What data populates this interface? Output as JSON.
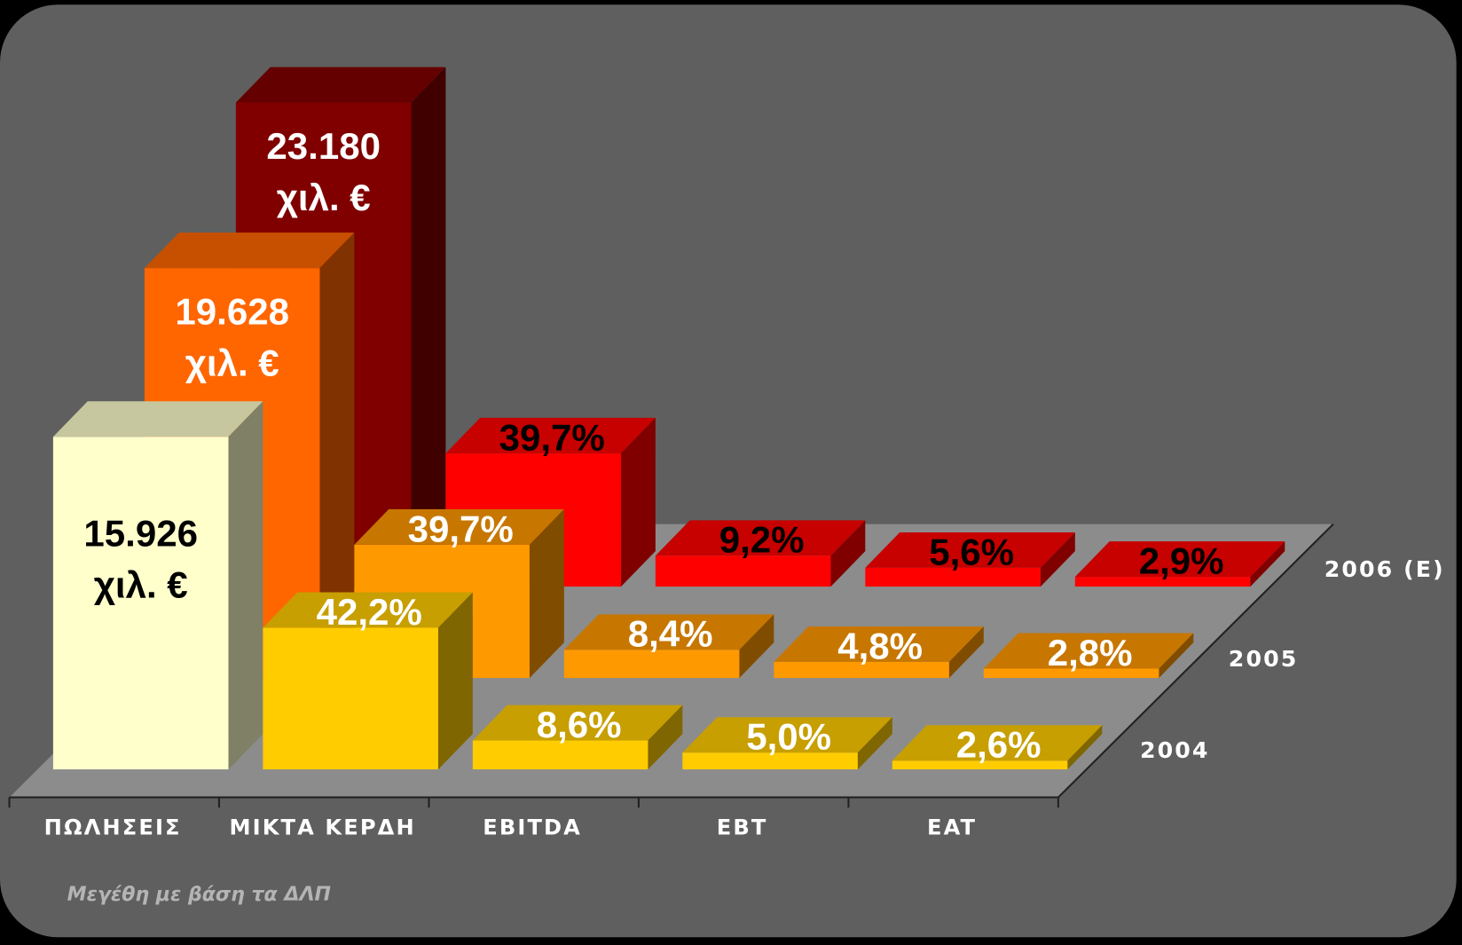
{
  "chart_data": {
    "type": "bar3d",
    "categories": [
      "ΠΩΛΗΣΕΙΣ",
      "ΜΙΚΤΑ ΚΕΡΔΗ",
      "EBITDA",
      "EBT",
      "EAT"
    ],
    "series": [
      {
        "name": "2004",
        "color": "#FFCC00",
        "first_color": "#FFFFCC",
        "label_colors": [
          "#000000",
          "#FFFFFF"
        ],
        "values": [
          15926,
          42.2,
          8.6,
          5.0,
          2.6
        ],
        "value_labels": [
          "15.926 χιλ. €",
          "42,2%",
          "8,6%",
          "5,0%",
          "2,6%"
        ]
      },
      {
        "name": "2005",
        "color": "#FF9900",
        "first_color": "#FF6600",
        "label_colors": [
          "#FFFFFF",
          "#FFFFFF"
        ],
        "values": [
          19628,
          39.7,
          8.4,
          4.8,
          2.8
        ],
        "value_labels": [
          "19.628 χιλ. €",
          "39,7%",
          "8,4%",
          "4,8%",
          "2,8%"
        ]
      },
      {
        "name": "2006 (E)",
        "color": "#FF0000",
        "first_color": "#800000",
        "label_colors": [
          "#FFFFFF",
          "#000000"
        ],
        "values": [
          23180,
          39.7,
          9.2,
          5.6,
          2.9
        ],
        "value_labels": [
          "23.180 χιλ. €",
          "39,7%",
          "9,2%",
          "5,6%",
          "2,9%"
        ]
      }
    ],
    "note": "Μεγέθη με βάση τα ΔΛΠ"
  }
}
